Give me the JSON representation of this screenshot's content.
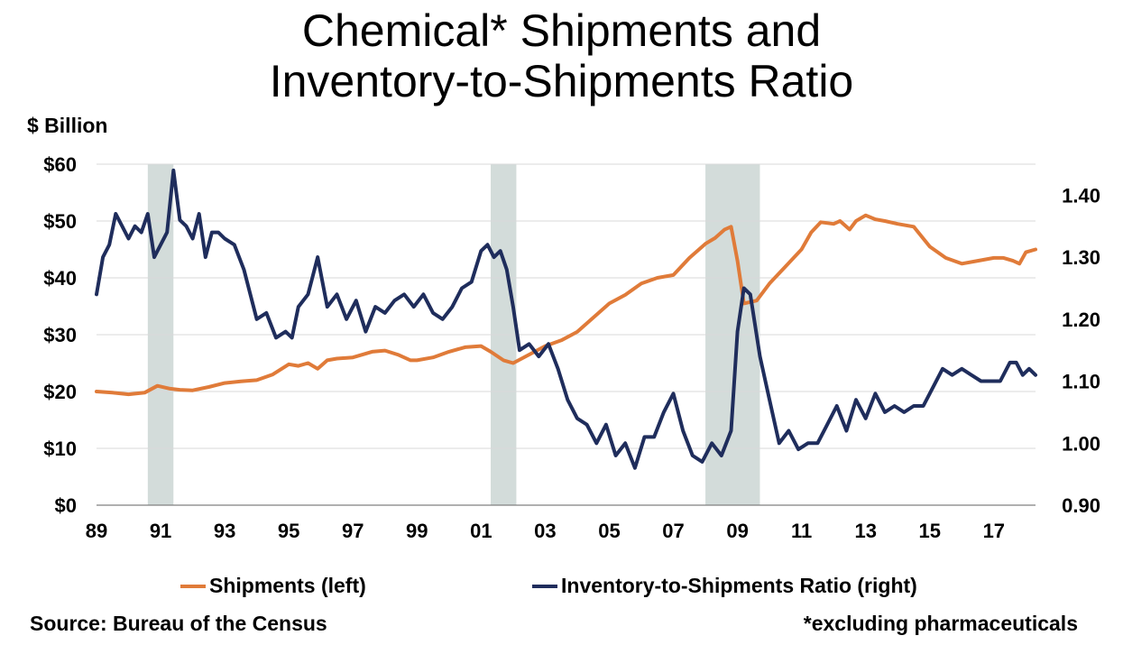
{
  "title_line1": "Chemical* Shipments and",
  "title_line2": "Inventory-to-Shipments Ratio",
  "unit_label": "$ Billion",
  "source": "Source: Bureau of the Census",
  "footnote": "*excluding pharmaceuticals",
  "colors": {
    "shipments": "#E07B39",
    "ratio": "#1F2D5C",
    "recession": "#D3DCDA",
    "grid": "#D9D9D9",
    "axis": "#808080"
  },
  "chart_data": {
    "type": "line",
    "x_unit": "year",
    "xlim": [
      1989.0,
      2018.3
    ],
    "x_ticks": [
      1989,
      1991,
      1993,
      1995,
      1997,
      1999,
      2001,
      2003,
      2005,
      2007,
      2009,
      2011,
      2013,
      2015,
      2017
    ],
    "x_tick_labels": [
      "89",
      "91",
      "93",
      "95",
      "97",
      "99",
      "01",
      "03",
      "05",
      "07",
      "09",
      "11",
      "13",
      "15",
      "17"
    ],
    "left_axis": {
      "ylim": [
        0,
        60
      ],
      "ticks": [
        0,
        10,
        20,
        30,
        40,
        50,
        60
      ],
      "tick_labels": [
        "$0",
        "$10",
        "$20",
        "$30",
        "$40",
        "$50",
        "$60"
      ]
    },
    "right_axis": {
      "ylim": [
        0.9,
        1.45
      ],
      "ticks": [
        0.9,
        1.0,
        1.1,
        1.2,
        1.3,
        1.4
      ],
      "tick_labels": [
        "0.90",
        "1.00",
        "1.10",
        "1.20",
        "1.30",
        "1.40"
      ]
    },
    "recessions": [
      [
        1990.6,
        1991.4
      ],
      [
        2001.3,
        2002.1
      ],
      [
        2008.0,
        2009.7
      ]
    ],
    "grid": true,
    "legend_position": "bottom",
    "series": [
      {
        "name": "Shipments (left)",
        "axis": "left",
        "x": [
          1989.0,
          1989.5,
          1990.0,
          1990.5,
          1990.9,
          1991.3,
          1991.6,
          1992.0,
          1992.5,
          1993.0,
          1993.5,
          1994.0,
          1994.5,
          1995.0,
          1995.3,
          1995.6,
          1995.9,
          1996.2,
          1996.5,
          1997.0,
          1997.3,
          1997.6,
          1998.0,
          1998.4,
          1998.8,
          1999.0,
          1999.5,
          2000.0,
          2000.5,
          2001.0,
          2001.3,
          2001.7,
          2002.0,
          2002.5,
          2003.0,
          2003.5,
          2004.0,
          2004.5,
          2005.0,
          2005.5,
          2006.0,
          2006.5,
          2007.0,
          2007.5,
          2008.0,
          2008.3,
          2008.6,
          2008.8,
          2009.0,
          2009.2,
          2009.6,
          2010.0,
          2010.5,
          2011.0,
          2011.3,
          2011.6,
          2012.0,
          2012.2,
          2012.5,
          2012.7,
          2013.0,
          2013.3,
          2013.6,
          2014.0,
          2014.5,
          2015.0,
          2015.5,
          2016.0,
          2016.5,
          2017.0,
          2017.3,
          2017.6,
          2017.8,
          2018.0,
          2018.3
        ],
        "values": [
          20.0,
          19.8,
          19.5,
          19.8,
          21.0,
          20.5,
          20.3,
          20.2,
          20.8,
          21.5,
          21.8,
          22.0,
          23.0,
          24.8,
          24.5,
          25.0,
          24.0,
          25.5,
          25.8,
          26.0,
          26.5,
          27.0,
          27.2,
          26.5,
          25.5,
          25.5,
          26.0,
          27.0,
          27.8,
          28.0,
          27.0,
          25.5,
          25.0,
          26.5,
          28.0,
          29.0,
          30.5,
          33.0,
          35.5,
          37.0,
          39.0,
          40.0,
          40.5,
          43.5,
          46.0,
          47.0,
          48.5,
          49.0,
          43.0,
          35.5,
          36.0,
          39.0,
          42.0,
          45.0,
          48.0,
          49.8,
          49.5,
          50.0,
          48.5,
          50.0,
          51.0,
          50.3,
          50.0,
          49.5,
          49.0,
          45.5,
          43.5,
          42.5,
          43.0,
          43.5,
          43.5,
          43.0,
          42.5,
          44.5,
          45.0
        ]
      },
      {
        "name": "Inventory-to-Shipments Ratio (right)",
        "axis": "right",
        "x": [
          1989.0,
          1989.2,
          1989.4,
          1989.6,
          1989.8,
          1990.0,
          1990.2,
          1990.4,
          1990.6,
          1990.8,
          1991.0,
          1991.2,
          1991.4,
          1991.6,
          1991.8,
          1992.0,
          1992.2,
          1992.4,
          1992.6,
          1992.8,
          1993.0,
          1993.3,
          1993.6,
          1994.0,
          1994.3,
          1994.6,
          1994.9,
          1995.1,
          1995.3,
          1995.6,
          1995.9,
          1996.2,
          1996.5,
          1996.8,
          1997.1,
          1997.4,
          1997.7,
          1998.0,
          1998.3,
          1998.6,
          1998.9,
          1999.2,
          1999.5,
          1999.8,
          2000.1,
          2000.4,
          2000.7,
          2001.0,
          2001.2,
          2001.4,
          2001.6,
          2001.8,
          2002.0,
          2002.2,
          2002.5,
          2002.8,
          2003.1,
          2003.4,
          2003.7,
          2004.0,
          2004.3,
          2004.6,
          2004.9,
          2005.2,
          2005.5,
          2005.8,
          2006.1,
          2006.4,
          2006.7,
          2007.0,
          2007.3,
          2007.6,
          2007.9,
          2008.2,
          2008.5,
          2008.8,
          2009.0,
          2009.2,
          2009.4,
          2009.7,
          2010.0,
          2010.3,
          2010.6,
          2010.9,
          2011.2,
          2011.5,
          2011.8,
          2012.1,
          2012.4,
          2012.7,
          2013.0,
          2013.3,
          2013.6,
          2013.9,
          2014.2,
          2014.5,
          2014.8,
          2015.1,
          2015.4,
          2015.7,
          2016.0,
          2016.3,
          2016.6,
          2016.9,
          2017.2,
          2017.5,
          2017.7,
          2017.9,
          2018.1,
          2018.3
        ],
        "values": [
          1.24,
          1.3,
          1.32,
          1.37,
          1.35,
          1.33,
          1.35,
          1.34,
          1.37,
          1.3,
          1.32,
          1.34,
          1.44,
          1.36,
          1.35,
          1.33,
          1.37,
          1.3,
          1.34,
          1.34,
          1.33,
          1.32,
          1.28,
          1.2,
          1.21,
          1.17,
          1.18,
          1.17,
          1.22,
          1.24,
          1.3,
          1.22,
          1.24,
          1.2,
          1.23,
          1.18,
          1.22,
          1.21,
          1.23,
          1.24,
          1.22,
          1.24,
          1.21,
          1.2,
          1.22,
          1.25,
          1.26,
          1.31,
          1.32,
          1.3,
          1.31,
          1.28,
          1.22,
          1.15,
          1.16,
          1.14,
          1.16,
          1.12,
          1.07,
          1.04,
          1.03,
          1.0,
          1.03,
          0.98,
          1.0,
          0.96,
          1.01,
          1.01,
          1.05,
          1.08,
          1.02,
          0.98,
          0.97,
          1.0,
          0.98,
          1.02,
          1.18,
          1.25,
          1.24,
          1.14,
          1.07,
          1.0,
          1.02,
          0.99,
          1.0,
          1.0,
          1.03,
          1.06,
          1.02,
          1.07,
          1.04,
          1.08,
          1.05,
          1.06,
          1.05,
          1.06,
          1.06,
          1.09,
          1.12,
          1.11,
          1.12,
          1.11,
          1.1,
          1.1,
          1.1,
          1.13,
          1.13,
          1.11,
          1.12,
          1.11
        ]
      }
    ]
  }
}
